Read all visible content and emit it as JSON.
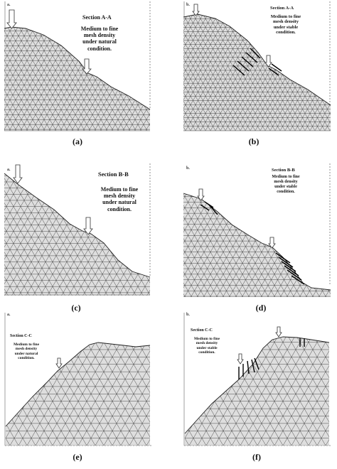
{
  "panels": [
    {
      "tag": "a.",
      "section": "Section A-A",
      "description": [
        "Medium to fine",
        "mesh density",
        "under natural",
        "condition."
      ],
      "caption": "(a)"
    },
    {
      "tag": "b.",
      "section": "Section A-A",
      "description": [
        "Medium to fine",
        "mesh density",
        "under stable",
        "condition."
      ],
      "caption": "(b)"
    },
    {
      "tag": "a.",
      "section": "Section B-B",
      "description": [
        "Medium to fine",
        "mesh density",
        "under natural",
        "condition."
      ],
      "caption": "(c)"
    },
    {
      "tag": "b.",
      "section": "Section B-B",
      "description": [
        "Medium to fine",
        "mesh density",
        "under stable",
        "condition."
      ],
      "caption": "(d)"
    },
    {
      "tag": "a.",
      "section": "Section C-C",
      "description": [
        "Medium to fine",
        "mesh density",
        "under natural",
        "condition."
      ],
      "caption": "(e)"
    },
    {
      "tag": "b.",
      "section": "Section C-C",
      "description": [
        "Medium to fine",
        "mesh density",
        "under stable",
        "condition."
      ],
      "caption": "(f)"
    }
  ],
  "colors": {
    "mesh_fill": "#dedede",
    "mesh_line": "#3a3a3a",
    "reinforcement": "#000000"
  }
}
